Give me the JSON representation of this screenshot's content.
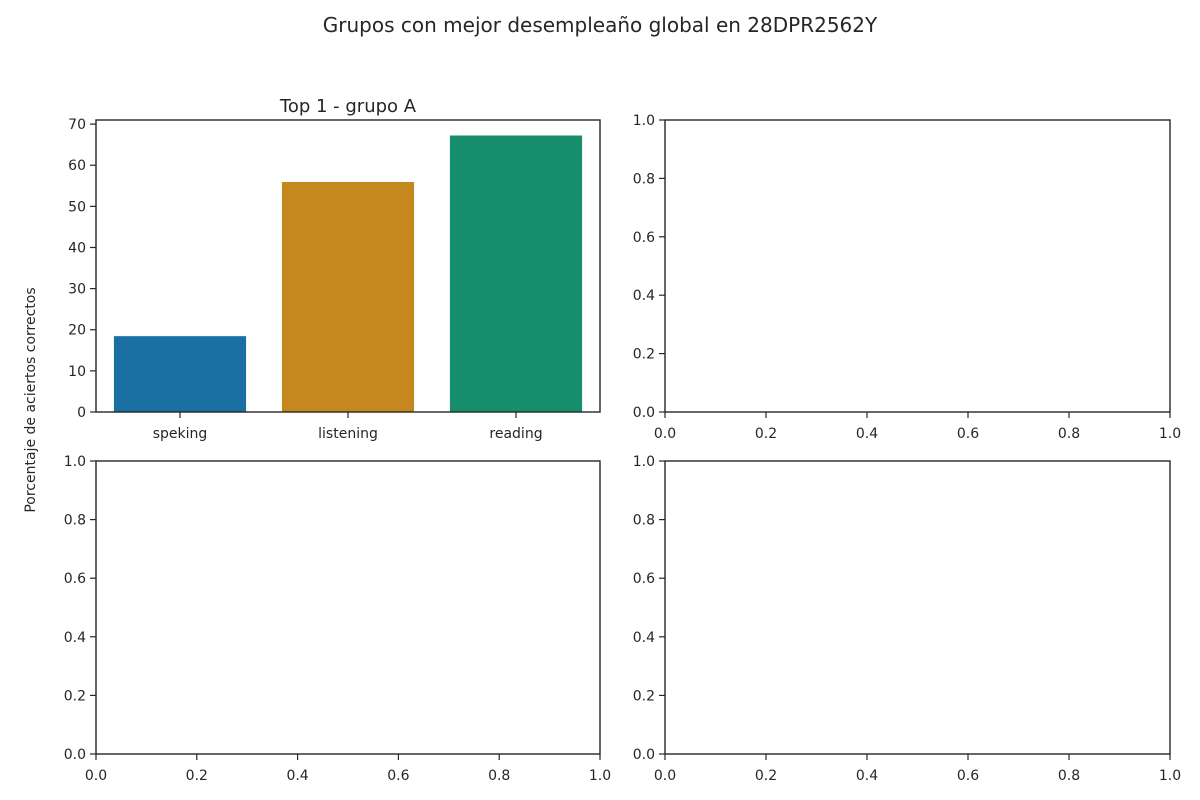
{
  "figure": {
    "suptitle": "Grupos con mejor desempleaño global en 28DPR2562Y",
    "ylabel": "Porcentaje de aciertos correctos"
  },
  "chart_data": [
    {
      "type": "bar",
      "title": "Top  1 - grupo A",
      "categories": [
        "speking",
        "listening",
        "reading"
      ],
      "values": [
        18.5,
        56.0,
        67.3
      ],
      "colors": [
        "#1a6fa3",
        "#c4881e",
        "#168e6c"
      ],
      "ylim": [
        0,
        71
      ],
      "yticks": [
        "0",
        "10",
        "20",
        "30",
        "40",
        "50",
        "60",
        "70"
      ],
      "grid": false
    },
    {
      "type": "bar",
      "title": "",
      "categories": [],
      "values": [],
      "xlim": [
        0,
        1
      ],
      "ylim": [
        0,
        1
      ],
      "xticks": [
        "0.0",
        "0.2",
        "0.4",
        "0.6",
        "0.8",
        "1.0"
      ],
      "yticks": [
        "0.0",
        "0.2",
        "0.4",
        "0.6",
        "0.8",
        "1.0"
      ]
    },
    {
      "type": "bar",
      "title": "",
      "categories": [],
      "values": [],
      "xlim": [
        0,
        1
      ],
      "ylim": [
        0,
        1
      ],
      "xticks": [
        "0.0",
        "0.2",
        "0.4",
        "0.6",
        "0.8",
        "1.0"
      ],
      "yticks": [
        "0.0",
        "0.2",
        "0.4",
        "0.6",
        "0.8",
        "1.0"
      ]
    },
    {
      "type": "bar",
      "title": "",
      "categories": [],
      "values": [],
      "xlim": [
        0,
        1
      ],
      "ylim": [
        0,
        1
      ],
      "xticks": [
        "0.0",
        "0.2",
        "0.4",
        "0.6",
        "0.8",
        "1.0"
      ],
      "yticks": [
        "0.0",
        "0.2",
        "0.4",
        "0.6",
        "0.8",
        "1.0"
      ]
    }
  ]
}
